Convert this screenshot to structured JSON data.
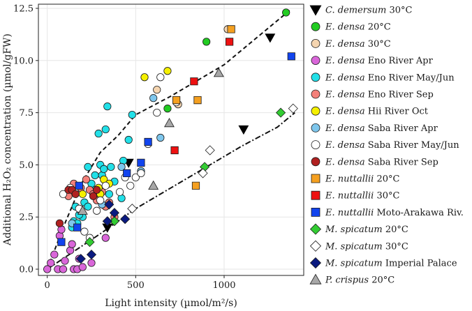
{
  "chart_data": {
    "type": "scatter",
    "xlabel": "Light intensity (µmol/m²/s)",
    "ylabel": "Additional H₂O₂ concentration (µmol/gFW)",
    "xlim": [
      -50,
      1450
    ],
    "ylim": [
      -0.3,
      12.7
    ],
    "xticks": [
      {
        "value": 0,
        "label": "0"
      },
      {
        "value": 500,
        "label": "500"
      },
      {
        "value": 1000,
        "label": "1000"
      }
    ],
    "yticks": [
      {
        "value": 0,
        "label": "0.0"
      },
      {
        "value": 2.5,
        "label": "2.5"
      },
      {
        "value": 5,
        "label": "5.0"
      },
      {
        "value": 7.5,
        "label": "7.5"
      },
      {
        "value": 10,
        "label": "10.0"
      },
      {
        "value": 12.5,
        "label": "12.5"
      }
    ],
    "grid": true,
    "legend_position": "right",
    "series": [
      {
        "name_italic": "C. demersum",
        "name_rest": " 30°C",
        "marker": "triangle-down",
        "color": "#000000",
        "stroke": "#000000",
        "points": [
          [
            340,
            2.0
          ],
          [
            460,
            5.1
          ],
          [
            1110,
            6.7
          ],
          [
            1260,
            11.1
          ]
        ]
      },
      {
        "name_italic": "E. densa",
        "name_rest": " 20°C",
        "marker": "circle",
        "color": "#22cc22",
        "stroke": "#1a1a1a",
        "points": [
          [
            680,
            7.7
          ],
          [
            900,
            10.9
          ],
          [
            1350,
            12.3
          ]
        ]
      },
      {
        "name_italic": "E. densa",
        "name_rest": " 30°C",
        "marker": "circle",
        "color": "#f5d5b0",
        "stroke": "#1a1a1a",
        "points": [
          [
            620,
            8.6
          ],
          [
            740,
            7.9
          ],
          [
            1020,
            11.5
          ]
        ]
      },
      {
        "name_italic": "E. densa",
        "name_rest": " Eno River Apr",
        "marker": "circle",
        "color": "#d966d9",
        "stroke": "#1a1a1a",
        "points": [
          [
            0,
            0.0
          ],
          [
            20,
            0.3
          ],
          [
            40,
            0.7
          ],
          [
            60,
            0.0
          ],
          [
            70,
            1.6
          ],
          [
            90,
            0.0
          ],
          [
            100,
            0.4
          ],
          [
            130,
            0.9
          ],
          [
            150,
            0.0
          ],
          [
            170,
            0.0
          ],
          [
            180,
            0.5
          ],
          [
            80,
            1.9
          ],
          [
            140,
            1.2
          ],
          [
            200,
            0.1
          ],
          [
            330,
            1.5
          ],
          [
            250,
            0.3
          ]
        ]
      },
      {
        "name_italic": "E. densa",
        "name_rest": " Eno River May/Jun",
        "marker": "circle",
        "color": "#22e0e8",
        "stroke": "#1a1a1a",
        "points": [
          [
            140,
            2.0
          ],
          [
            150,
            2.3
          ],
          [
            160,
            3.0
          ],
          [
            170,
            2.2
          ],
          [
            200,
            2.5
          ],
          [
            210,
            3.2
          ],
          [
            230,
            4.9
          ],
          [
            260,
            3.8
          ],
          [
            270,
            4.5
          ],
          [
            290,
            6.5
          ],
          [
            300,
            5.0
          ],
          [
            310,
            4.5
          ],
          [
            320,
            4.8
          ],
          [
            330,
            6.7
          ],
          [
            340,
            7.8
          ],
          [
            350,
            3.6
          ],
          [
            360,
            4.9
          ],
          [
            380,
            4.2
          ],
          [
            420,
            3.4
          ],
          [
            430,
            5.2
          ],
          [
            460,
            6.2
          ],
          [
            480,
            7.4
          ],
          [
            230,
            3.0
          ],
          [
            250,
            4.1
          ],
          [
            180,
            2.6
          ]
        ]
      },
      {
        "name_italic": "E. densa",
        "name_rest": " Eno River Sep",
        "marker": "circle",
        "color": "#f4807a",
        "stroke": "#1a1a1a",
        "points": [
          [
            120,
            3.5
          ],
          [
            150,
            4.1
          ],
          [
            190,
            3.9
          ],
          [
            220,
            4.3
          ],
          [
            240,
            3.8
          ],
          [
            260,
            3.6
          ],
          [
            280,
            3.3
          ],
          [
            310,
            3.7
          ],
          [
            330,
            3.0
          ],
          [
            350,
            3.2
          ],
          [
            380,
            2.5
          ]
        ]
      },
      {
        "name_italic": "E. densa",
        "name_rest": " Hii River Oct",
        "marker": "circle",
        "color": "#f5f000",
        "stroke": "#1a1a1a",
        "points": [
          [
            200,
            3.6
          ],
          [
            290,
            3.9
          ],
          [
            300,
            3.6
          ],
          [
            320,
            4.3
          ],
          [
            350,
            4.1
          ],
          [
            550,
            9.2
          ],
          [
            680,
            9.5
          ]
        ]
      },
      {
        "name_italic": "E. densa",
        "name_rest": " Saba River Apr",
        "marker": "circle",
        "color": "#7ec6ec",
        "stroke": "#1a1a1a",
        "points": [
          [
            140,
            2.2
          ],
          [
            190,
            2.8
          ],
          [
            310,
            3.1
          ],
          [
            420,
            4.9
          ],
          [
            530,
            4.7
          ],
          [
            600,
            8.2
          ],
          [
            640,
            6.3
          ]
        ]
      },
      {
        "name_italic": "E. densa",
        "name_rest": " Saba River May/Jun",
        "marker": "circle",
        "color": "#ffffff",
        "stroke": "#1a1a1a",
        "points": [
          [
            90,
            3.6
          ],
          [
            130,
            3.9
          ],
          [
            180,
            2.9
          ],
          [
            210,
            1.8
          ],
          [
            240,
            1.5
          ],
          [
            280,
            2.8
          ],
          [
            300,
            3.3
          ],
          [
            330,
            4.0
          ],
          [
            410,
            3.7
          ],
          [
            440,
            4.4
          ],
          [
            470,
            4.0
          ],
          [
            500,
            4.4
          ],
          [
            530,
            4.6
          ],
          [
            570,
            6.0
          ],
          [
            620,
            7.5
          ],
          [
            640,
            9.2
          ],
          [
            730,
            8.0
          ]
        ]
      },
      {
        "name_italic": "E. densa",
        "name_rest": " Saba River Sep",
        "marker": "circle",
        "color": "#b02020",
        "stroke": "#1a1a1a",
        "points": [
          [
            70,
            2.2
          ],
          [
            120,
            3.8
          ],
          [
            140,
            3.8
          ],
          [
            160,
            3.6
          ],
          [
            260,
            3.5
          ],
          [
            280,
            3.8
          ]
        ]
      },
      {
        "name_italic": "E. nuttallii",
        "name_rest": " 20°C",
        "marker": "square",
        "color": "#f5a020",
        "stroke": "#1a1a1a",
        "points": [
          [
            730,
            8.1
          ],
          [
            840,
            4.0
          ],
          [
            850,
            8.1
          ],
          [
            1040,
            11.5
          ]
        ]
      },
      {
        "name_italic": "E. nuttallii",
        "name_rest": " 30°C",
        "marker": "square",
        "color": "#ee1111",
        "stroke": "#1a1a1a",
        "points": [
          [
            720,
            5.7
          ],
          [
            830,
            9.0
          ],
          [
            1030,
            10.9
          ]
        ]
      },
      {
        "name_italic": "E. nuttallii",
        "name_rest": " Moto-Arakawa Riv.",
        "marker": "square",
        "color": "#1144ee",
        "stroke": "#1a1a1a",
        "points": [
          [
            80,
            1.3
          ],
          [
            170,
            2.0
          ],
          [
            180,
            4.0
          ],
          [
            450,
            4.6
          ],
          [
            530,
            5.1
          ],
          [
            570,
            6.1
          ],
          [
            1380,
            10.2
          ]
        ]
      },
      {
        "name_italic": "M. spicatum",
        "name_rest": " 20°C",
        "marker": "diamond",
        "color": "#33cc33",
        "stroke": "#1a1a1a",
        "points": [
          [
            240,
            1.3
          ],
          [
            380,
            2.3
          ],
          [
            890,
            4.9
          ],
          [
            1320,
            7.5
          ]
        ]
      },
      {
        "name_italic": "M. spicatum",
        "name_rest": " 30°C",
        "marker": "diamond",
        "color": "#ffffff",
        "stroke": "#1a1a1a",
        "points": [
          [
            480,
            2.9
          ],
          [
            880,
            4.6
          ],
          [
            920,
            5.7
          ],
          [
            1390,
            7.7
          ]
        ]
      },
      {
        "name_italic": "M. spicatum",
        "name_rest": " Imperial Palace",
        "marker": "diamond",
        "color": "#0a1a80",
        "stroke": "#1a1a1a",
        "points": [
          [
            190,
            0.5
          ],
          [
            250,
            0.7
          ],
          [
            340,
            2.3
          ],
          [
            380,
            2.7
          ],
          [
            350,
            3.1
          ],
          [
            440,
            2.4
          ]
        ]
      },
      {
        "name_italic": "P. crispus",
        "name_rest": " 20°C",
        "marker": "triangle-up",
        "color": "#a8a8a8",
        "stroke": "#1a1a1a",
        "points": [
          [
            200,
            2.8
          ],
          [
            600,
            4.0
          ],
          [
            690,
            7.0
          ],
          [
            970,
            9.4
          ]
        ]
      }
    ],
    "fit_lines": [
      {
        "name": "dashed-fit",
        "style": "dashed",
        "points": [
          [
            0,
            0
          ],
          [
            100,
            2.2
          ],
          [
            200,
            4.2
          ],
          [
            300,
            5.6
          ],
          [
            400,
            6.4
          ],
          [
            500,
            7.4
          ],
          [
            700,
            8.3
          ],
          [
            1000,
            9.8
          ],
          [
            1370,
            12.4
          ]
        ]
      },
      {
        "name": "dashdot-fit",
        "style": "dashdot",
        "points": [
          [
            0,
            0
          ],
          [
            300,
            1.7
          ],
          [
            500,
            2.9
          ],
          [
            700,
            3.9
          ],
          [
            900,
            4.9
          ],
          [
            1100,
            5.9
          ],
          [
            1300,
            6.8
          ],
          [
            1400,
            7.5
          ]
        ]
      }
    ]
  }
}
